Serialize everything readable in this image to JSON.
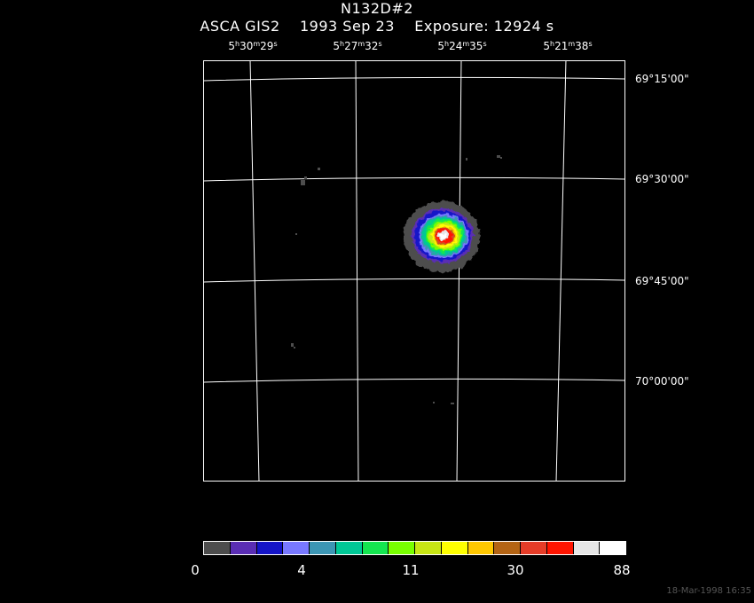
{
  "title": "N132D#2",
  "subtitle": {
    "instrument": "ASCA GIS2",
    "date": "1993 Sep 23",
    "exposure": "Exposure: 12924 s"
  },
  "ra_ticks": [
    {
      "h": "5",
      "m": "30",
      "s": "29"
    },
    {
      "h": "5",
      "m": "27",
      "s": "32"
    },
    {
      "h": "5",
      "m": "24",
      "s": "35"
    },
    {
      "h": "5",
      "m": "21",
      "s": "38"
    }
  ],
  "dec_ticks": [
    "69°15'00\"",
    "69°30'00\"",
    "69°45'00\"",
    "70°00'00\""
  ],
  "colorbar": {
    "colors": [
      "#4d4d4d",
      "#5a2db4",
      "#1414c8",
      "#7878ff",
      "#3c96b4",
      "#00c896",
      "#14e650",
      "#78ff00",
      "#c8e614",
      "#ffff00",
      "#ffc800",
      "#b46414",
      "#e63c28",
      "#ff1400",
      "#e6e6e6",
      "#ffffff"
    ],
    "labels": [
      "0",
      "4",
      "11",
      "30",
      "88"
    ]
  },
  "timestamp": "18-Mar-1998 16:35"
}
